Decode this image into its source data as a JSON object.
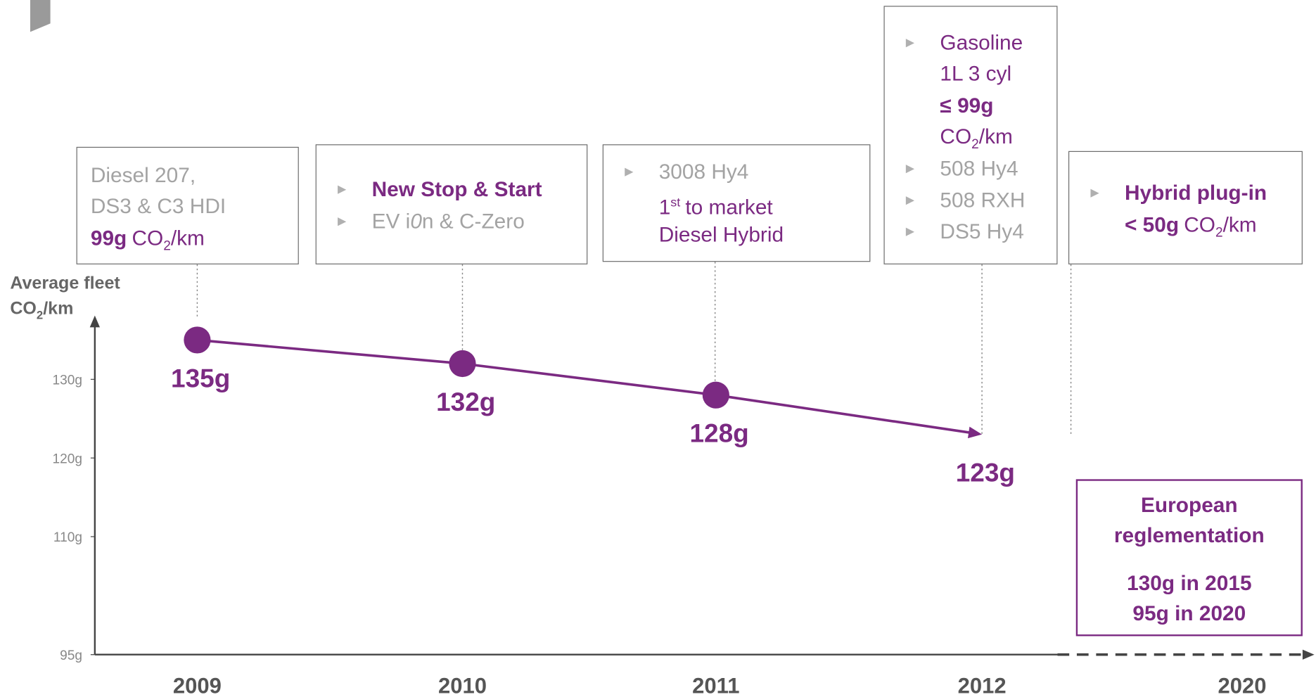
{
  "chart_data": {
    "type": "line",
    "y_label": [
      "Average fleet",
      "CO",
      "2",
      "/km"
    ],
    "categories": [
      "2009",
      "2010",
      "2011",
      "2012",
      "2020"
    ],
    "values": [
      135,
      132,
      128,
      123,
      null
    ],
    "value_labels": [
      "135g",
      "132g",
      "128g",
      "123g",
      null
    ],
    "color": "#7b2a82",
    "ylim": [
      95,
      138
    ],
    "yticks": [
      {
        "value": 95,
        "label": "95g"
      },
      {
        "value": 110,
        "label": "110g"
      },
      {
        "value": 120,
        "label": "120g"
      },
      {
        "value": 130,
        "label": "130g"
      }
    ],
    "annotations": [
      {
        "lines": [
          [
            "Diesel 207,"
          ],
          [
            "DS3 & C3 HDI"
          ],
          [
            "99g",
            "CO",
            "2",
            "/km"
          ]
        ]
      },
      {
        "lines": [
          [
            "New Stop & Start"
          ],
          [
            "EV i",
            "0",
            "n & C-Zero"
          ]
        ]
      },
      {
        "lines": [
          [
            "3008 Hy4"
          ],
          [
            "1",
            "st",
            "to market"
          ],
          [
            "Diesel Hybrid"
          ]
        ]
      },
      {
        "lines": [
          [
            "Gasoline"
          ],
          [
            "1L 3 cyl"
          ],
          [
            "≤ 99g"
          ],
          [
            "CO",
            "2",
            "/km"
          ],
          [
            "508 Hy4"
          ],
          [
            "508 RXH"
          ],
          [
            "DS5 Hy4"
          ]
        ]
      },
      {
        "lines": [
          [
            "Hybrid plug-in"
          ],
          [
            "< 50g",
            "CO",
            "2",
            "/km"
          ]
        ]
      },
      {
        "lines": [
          [
            "European"
          ],
          [
            "reglementation"
          ],
          [
            "130g in 2015"
          ],
          [
            "95g in 2020"
          ]
        ]
      }
    ]
  }
}
